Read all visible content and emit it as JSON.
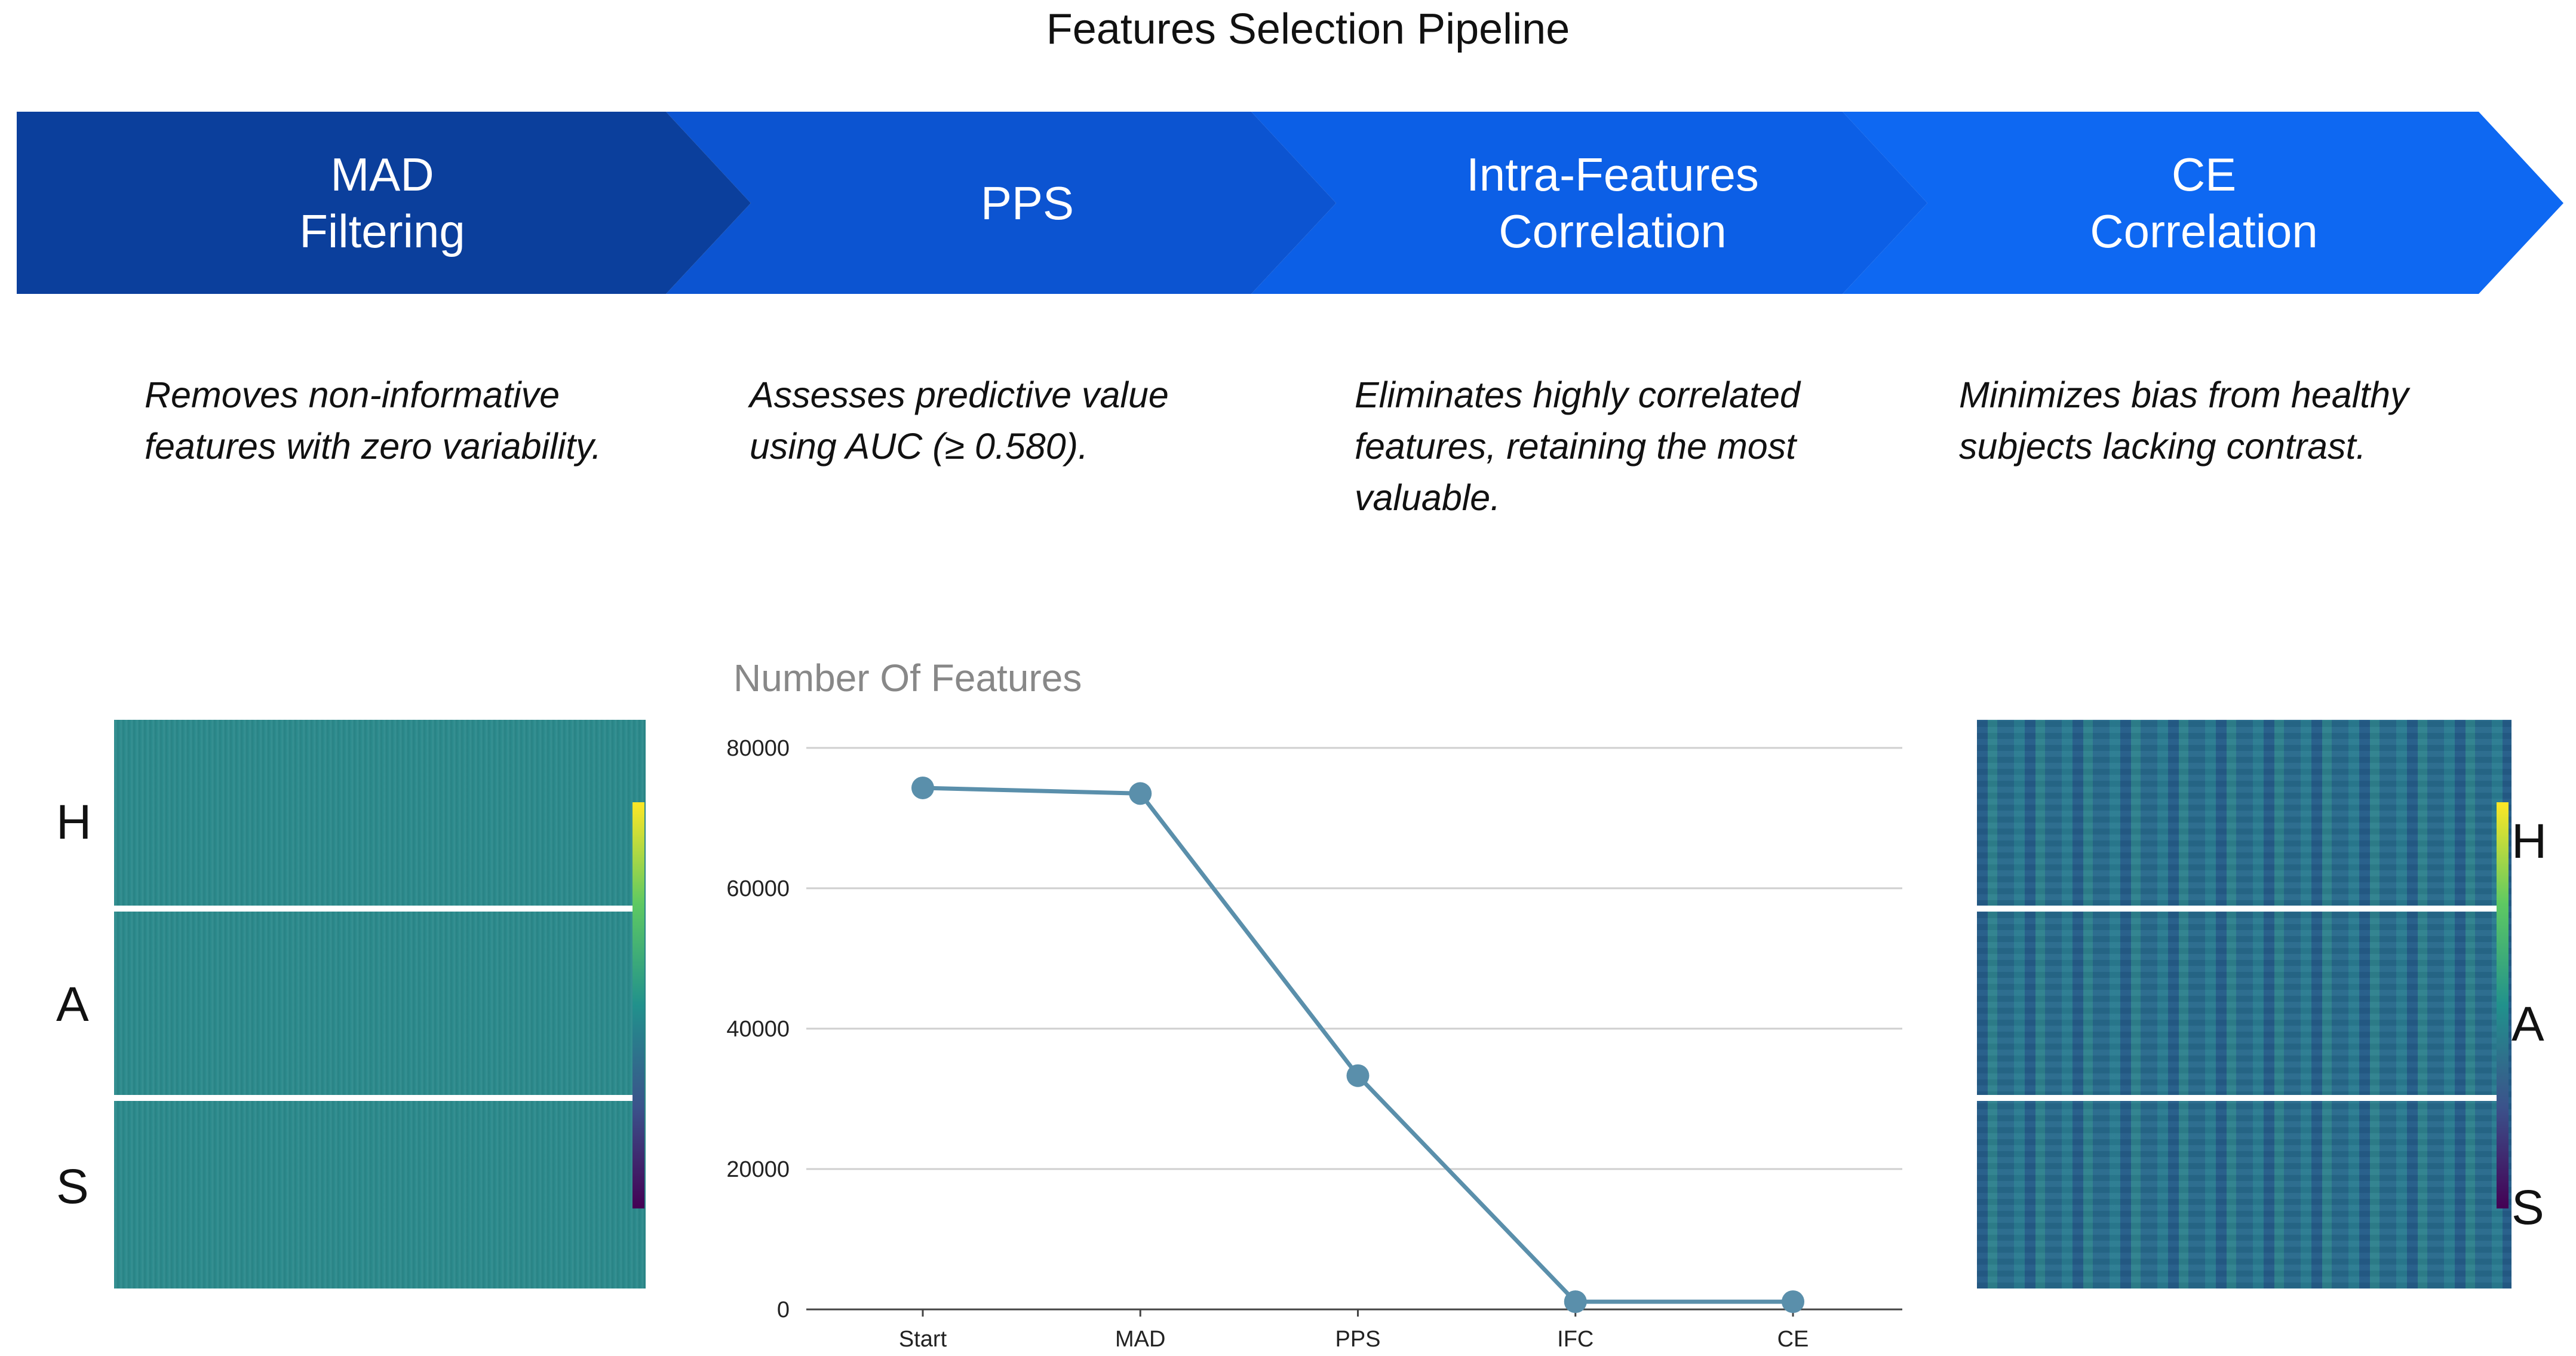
{
  "title": "Features Selection Pipeline",
  "steps": [
    {
      "line1": "MAD",
      "line2": "Filtering",
      "color": "#0b3f9c",
      "description": "Removes non-informative features with zero variability."
    },
    {
      "line1": "PPS",
      "line2": "",
      "color": "#0c54d1",
      "description": "Assesses predictive value using AUC  (≥ 0.580)."
    },
    {
      "line1": "Intra-Features",
      "line2": "Correlation",
      "color": "#0c5fe6",
      "description": "Eliminates highly correlated features, retaining the most valuable."
    },
    {
      "line1": "CE",
      "line2": "Correlation",
      "color": "#0e68f2",
      "description": "Minimizes bias from healthy subjects lacking contrast."
    }
  ],
  "left_heatmap": {
    "labels": [
      "H",
      "A",
      "S"
    ],
    "base_color": "#2b8a8c"
  },
  "right_heatmap": {
    "labels": [
      "H",
      "A",
      "S"
    ],
    "base_color": "#2a6e8e"
  },
  "chart_data": {
    "type": "line",
    "title": "Number Of Features",
    "categories": [
      "Start",
      "MAD",
      "PPS",
      "IFC",
      "CE"
    ],
    "series": [
      {
        "values": [
          74300,
          73500,
          33300,
          1100,
          1100
        ]
      }
    ],
    "ylim": [
      0,
      80000
    ],
    "yticks": [
      0,
      20000,
      40000,
      60000,
      80000
    ],
    "grid": true,
    "line_color": "#5a8fab"
  }
}
